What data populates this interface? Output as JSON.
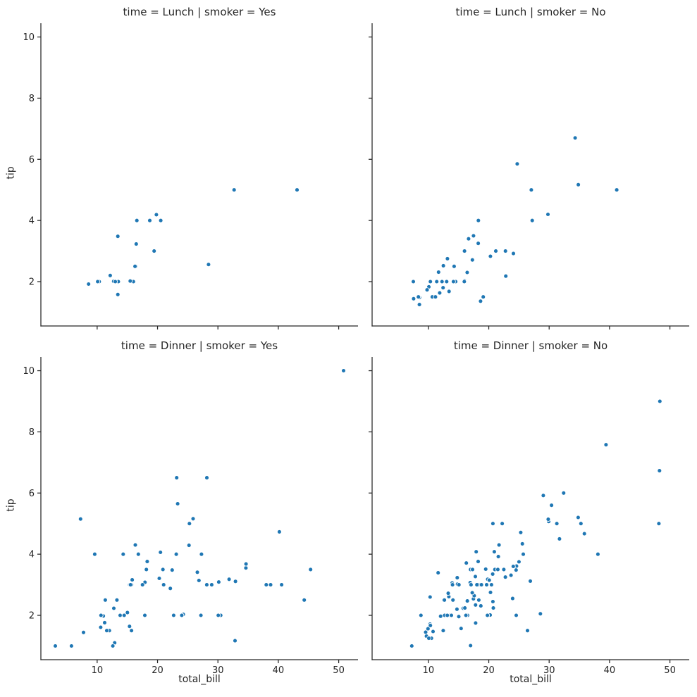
{
  "figure": {
    "background": "#ffffff",
    "text_color": "#262626"
  },
  "chart_data": {
    "type": "scatter",
    "title": "",
    "xlabel": "total_bill",
    "ylabel": "tip",
    "facet_row_var": "time",
    "facet_col_var": "smoker",
    "xlim": [
      0.68,
      53.2
    ],
    "ylim": [
      0.55,
      10.45
    ],
    "x_ticks": [
      10,
      20,
      30,
      40,
      50
    ],
    "y_ticks": [
      2,
      4,
      6,
      8,
      10
    ],
    "grid": false,
    "legend": "none",
    "colors": {
      "marker": "#1f77b4",
      "marker_edge": "#ffffff",
      "spine": "#262626",
      "text": "#262626"
    },
    "facets": [
      {
        "title": "time = Lunch | smoker = Yes",
        "row": "Lunch",
        "col": "Yes",
        "points": [
          [
            19.44,
            3.0
          ],
          [
            32.68,
            5.0
          ],
          [
            16.0,
            2.0
          ],
          [
            19.81,
            4.19
          ],
          [
            28.44,
            2.56
          ],
          [
            15.48,
            2.02
          ],
          [
            16.58,
            4.0
          ],
          [
            10.34,
            2.0
          ],
          [
            43.11,
            5.0
          ],
          [
            13.0,
            2.0
          ],
          [
            13.51,
            2.0
          ],
          [
            18.71,
            4.0
          ],
          [
            12.74,
            2.01
          ],
          [
            13.0,
            2.0
          ],
          [
            16.4,
            2.5
          ],
          [
            20.53,
            4.0
          ],
          [
            16.47,
            3.23
          ],
          [
            12.16,
            2.2
          ],
          [
            13.42,
            3.48
          ],
          [
            8.58,
            1.92
          ],
          [
            13.42,
            1.58
          ],
          [
            16.27,
            2.5
          ],
          [
            10.09,
            2.0
          ]
        ]
      },
      {
        "title": "time = Lunch | smoker = No",
        "row": "Lunch",
        "col": "No",
        "points": [
          [
            27.2,
            4.0
          ],
          [
            22.76,
            3.0
          ],
          [
            17.29,
            2.71
          ],
          [
            16.66,
            3.4
          ],
          [
            10.07,
            1.83
          ],
          [
            15.98,
            2.03
          ],
          [
            34.83,
            5.17
          ],
          [
            13.03,
            2.0
          ],
          [
            18.28,
            4.0
          ],
          [
            24.71,
            5.85
          ],
          [
            21.16,
            3.0
          ],
          [
            10.65,
            1.5
          ],
          [
            12.43,
            1.8
          ],
          [
            24.08,
            2.92
          ],
          [
            11.69,
            2.31
          ],
          [
            13.42,
            1.68
          ],
          [
            14.26,
            2.5
          ],
          [
            15.95,
            2.0
          ],
          [
            12.48,
            2.52
          ],
          [
            29.8,
            4.2
          ],
          [
            8.52,
            1.48
          ],
          [
            14.52,
            2.0
          ],
          [
            11.38,
            2.0
          ],
          [
            22.82,
            2.18
          ],
          [
            19.08,
            1.5
          ],
          [
            20.27,
            2.83
          ],
          [
            11.17,
            1.5
          ],
          [
            12.26,
            2.0
          ],
          [
            18.26,
            3.25
          ],
          [
            8.51,
            1.25
          ],
          [
            10.33,
            2.0
          ],
          [
            14.15,
            2.0
          ],
          [
            13.16,
            2.75
          ],
          [
            17.47,
            3.5
          ],
          [
            34.3,
            6.7
          ],
          [
            41.19,
            5.0
          ],
          [
            27.05,
            5.0
          ],
          [
            16.43,
            2.3
          ],
          [
            8.35,
            1.5
          ],
          [
            18.64,
            1.36
          ],
          [
            11.87,
            1.63
          ],
          [
            9.78,
            1.73
          ],
          [
            7.51,
            2.0
          ],
          [
            7.56,
            1.44
          ],
          [
            15.98,
            3.0
          ]
        ]
      },
      {
        "title": "time = Dinner | smoker = Yes",
        "row": "Dinner",
        "col": "Yes",
        "points": [
          [
            38.01,
            3.0
          ],
          [
            11.24,
            1.76
          ],
          [
            20.29,
            3.21
          ],
          [
            13.81,
            2.0
          ],
          [
            11.02,
            1.98
          ],
          [
            18.29,
            3.76
          ],
          [
            3.07,
            1.0
          ],
          [
            15.01,
            2.09
          ],
          [
            26.86,
            3.14
          ],
          [
            25.28,
            5.0
          ],
          [
            17.92,
            3.08
          ],
          [
            28.97,
            3.0
          ],
          [
            5.75,
            1.0
          ],
          [
            16.32,
            4.3
          ],
          [
            40.17,
            4.73
          ],
          [
            27.28,
            4.0
          ],
          [
            12.03,
            1.5
          ],
          [
            21.01,
            3.0
          ],
          [
            11.35,
            2.5
          ],
          [
            15.38,
            3.0
          ],
          [
            44.3,
            2.5
          ],
          [
            22.42,
            3.48
          ],
          [
            15.36,
            1.64
          ],
          [
            20.49,
            4.06
          ],
          [
            25.21,
            4.29
          ],
          [
            14.31,
            4.0
          ],
          [
            17.51,
            3.0
          ],
          [
            10.59,
            1.61
          ],
          [
            10.63,
            2.0
          ],
          [
            50.81,
            10.0
          ],
          [
            15.81,
            3.16
          ],
          [
            7.25,
            5.15
          ],
          [
            31.85,
            3.18
          ],
          [
            16.82,
            4.0
          ],
          [
            32.9,
            3.11
          ],
          [
            17.89,
            2.0
          ],
          [
            14.48,
            2.0
          ],
          [
            9.6,
            4.0
          ],
          [
            34.63,
            3.55
          ],
          [
            34.65,
            3.68
          ],
          [
            23.33,
            5.65
          ],
          [
            45.35,
            3.5
          ],
          [
            23.17,
            6.5
          ],
          [
            40.55,
            3.0
          ],
          [
            20.9,
            3.5
          ],
          [
            30.46,
            2.0
          ],
          [
            18.15,
            3.5
          ],
          [
            23.1,
            4.0
          ],
          [
            15.69,
            1.5
          ],
          [
            26.59,
            3.41
          ],
          [
            38.73,
            3.0
          ],
          [
            24.27,
            2.03
          ],
          [
            12.76,
            2.23
          ],
          [
            30.06,
            2.0
          ],
          [
            25.89,
            5.16
          ],
          [
            13.27,
            2.5
          ],
          [
            28.17,
            6.5
          ],
          [
            12.9,
            1.1
          ],
          [
            28.15,
            3.0
          ],
          [
            11.59,
            1.5
          ],
          [
            7.74,
            1.44
          ],
          [
            30.14,
            3.09
          ],
          [
            22.12,
            2.88
          ],
          [
            24.01,
            2.0
          ],
          [
            15.69,
            3.0
          ],
          [
            15.53,
            3.0
          ],
          [
            12.6,
            1.0
          ],
          [
            32.83,
            1.17
          ],
          [
            27.18,
            2.0
          ],
          [
            22.67,
            2.0
          ]
        ]
      },
      {
        "title": "time = Dinner | smoker = No",
        "row": "Dinner",
        "col": "No",
        "points": [
          [
            16.99,
            1.01
          ],
          [
            10.34,
            1.66
          ],
          [
            21.01,
            3.5
          ],
          [
            23.68,
            3.31
          ],
          [
            24.59,
            3.61
          ],
          [
            25.29,
            4.71
          ],
          [
            8.77,
            2.0
          ],
          [
            26.88,
            3.12
          ],
          [
            15.04,
            1.96
          ],
          [
            14.78,
            3.23
          ],
          [
            10.27,
            1.71
          ],
          [
            35.26,
            5.0
          ],
          [
            15.42,
            1.57
          ],
          [
            18.43,
            3.0
          ],
          [
            14.83,
            3.02
          ],
          [
            21.58,
            3.92
          ],
          [
            10.33,
            1.67
          ],
          [
            16.29,
            3.71
          ],
          [
            16.97,
            3.5
          ],
          [
            20.65,
            3.35
          ],
          [
            17.92,
            4.08
          ],
          [
            20.29,
            2.75
          ],
          [
            15.77,
            2.23
          ],
          [
            39.42,
            7.58
          ],
          [
            19.82,
            3.18
          ],
          [
            17.81,
            2.34
          ],
          [
            13.37,
            2.0
          ],
          [
            12.69,
            2.0
          ],
          [
            21.7,
            4.3
          ],
          [
            19.65,
            3.0
          ],
          [
            9.55,
            1.45
          ],
          [
            18.35,
            2.5
          ],
          [
            15.06,
            3.0
          ],
          [
            20.69,
            2.45
          ],
          [
            17.78,
            3.27
          ],
          [
            24.06,
            3.6
          ],
          [
            16.31,
            2.0
          ],
          [
            16.93,
            3.07
          ],
          [
            18.69,
            2.31
          ],
          [
            31.27,
            5.0
          ],
          [
            16.04,
            2.24
          ],
          [
            17.46,
            2.54
          ],
          [
            13.94,
            3.06
          ],
          [
            9.68,
            1.32
          ],
          [
            30.4,
            5.6
          ],
          [
            18.29,
            3.0
          ],
          [
            22.23,
            5.0
          ],
          [
            32.4,
            6.0
          ],
          [
            28.55,
            2.05
          ],
          [
            18.04,
            3.0
          ],
          [
            12.54,
            2.5
          ],
          [
            10.29,
            2.6
          ],
          [
            34.81,
            5.2
          ],
          [
            9.94,
            1.56
          ],
          [
            25.56,
            4.34
          ],
          [
            19.49,
            3.51
          ],
          [
            26.41,
            1.5
          ],
          [
            48.27,
            6.73
          ],
          [
            17.59,
            2.64
          ],
          [
            20.08,
            3.15
          ],
          [
            16.45,
            2.47
          ],
          [
            20.23,
            2.01
          ],
          [
            12.02,
            1.97
          ],
          [
            17.07,
            3.0
          ],
          [
            14.73,
            2.2
          ],
          [
            10.51,
            1.25
          ],
          [
            22.49,
            3.5
          ],
          [
            22.75,
            3.25
          ],
          [
            12.46,
            1.5
          ],
          [
            20.92,
            4.08
          ],
          [
            18.24,
            3.76
          ],
          [
            14.0,
            3.0
          ],
          [
            7.25,
            1.0
          ],
          [
            38.07,
            4.0
          ],
          [
            23.95,
            2.55
          ],
          [
            25.71,
            4.0
          ],
          [
            17.31,
            3.5
          ],
          [
            29.93,
            5.07
          ],
          [
            14.07,
            2.5
          ],
          [
            13.13,
            2.0
          ],
          [
            17.26,
            2.74
          ],
          [
            24.55,
            2.0
          ],
          [
            19.77,
            2.0
          ],
          [
            29.85,
            5.14
          ],
          [
            48.17,
            5.0
          ],
          [
            25.0,
            3.75
          ],
          [
            13.39,
            2.61
          ],
          [
            16.49,
            2.0
          ],
          [
            21.5,
            3.5
          ],
          [
            12.66,
            2.5
          ],
          [
            16.21,
            2.0
          ],
          [
            13.81,
            2.0
          ],
          [
            24.52,
            3.48
          ],
          [
            20.76,
            2.24
          ],
          [
            31.71,
            4.5
          ],
          [
            20.69,
            5.0
          ],
          [
            48.33,
            9.0
          ],
          [
            20.45,
            3.0
          ],
          [
            13.28,
            2.72
          ],
          [
            11.61,
            3.39
          ],
          [
            10.77,
            1.47
          ],
          [
            10.07,
            1.25
          ],
          [
            35.83,
            4.67
          ],
          [
            29.03,
            5.92
          ],
          [
            17.82,
            1.75
          ],
          [
            18.78,
            3.0
          ]
        ]
      }
    ]
  }
}
